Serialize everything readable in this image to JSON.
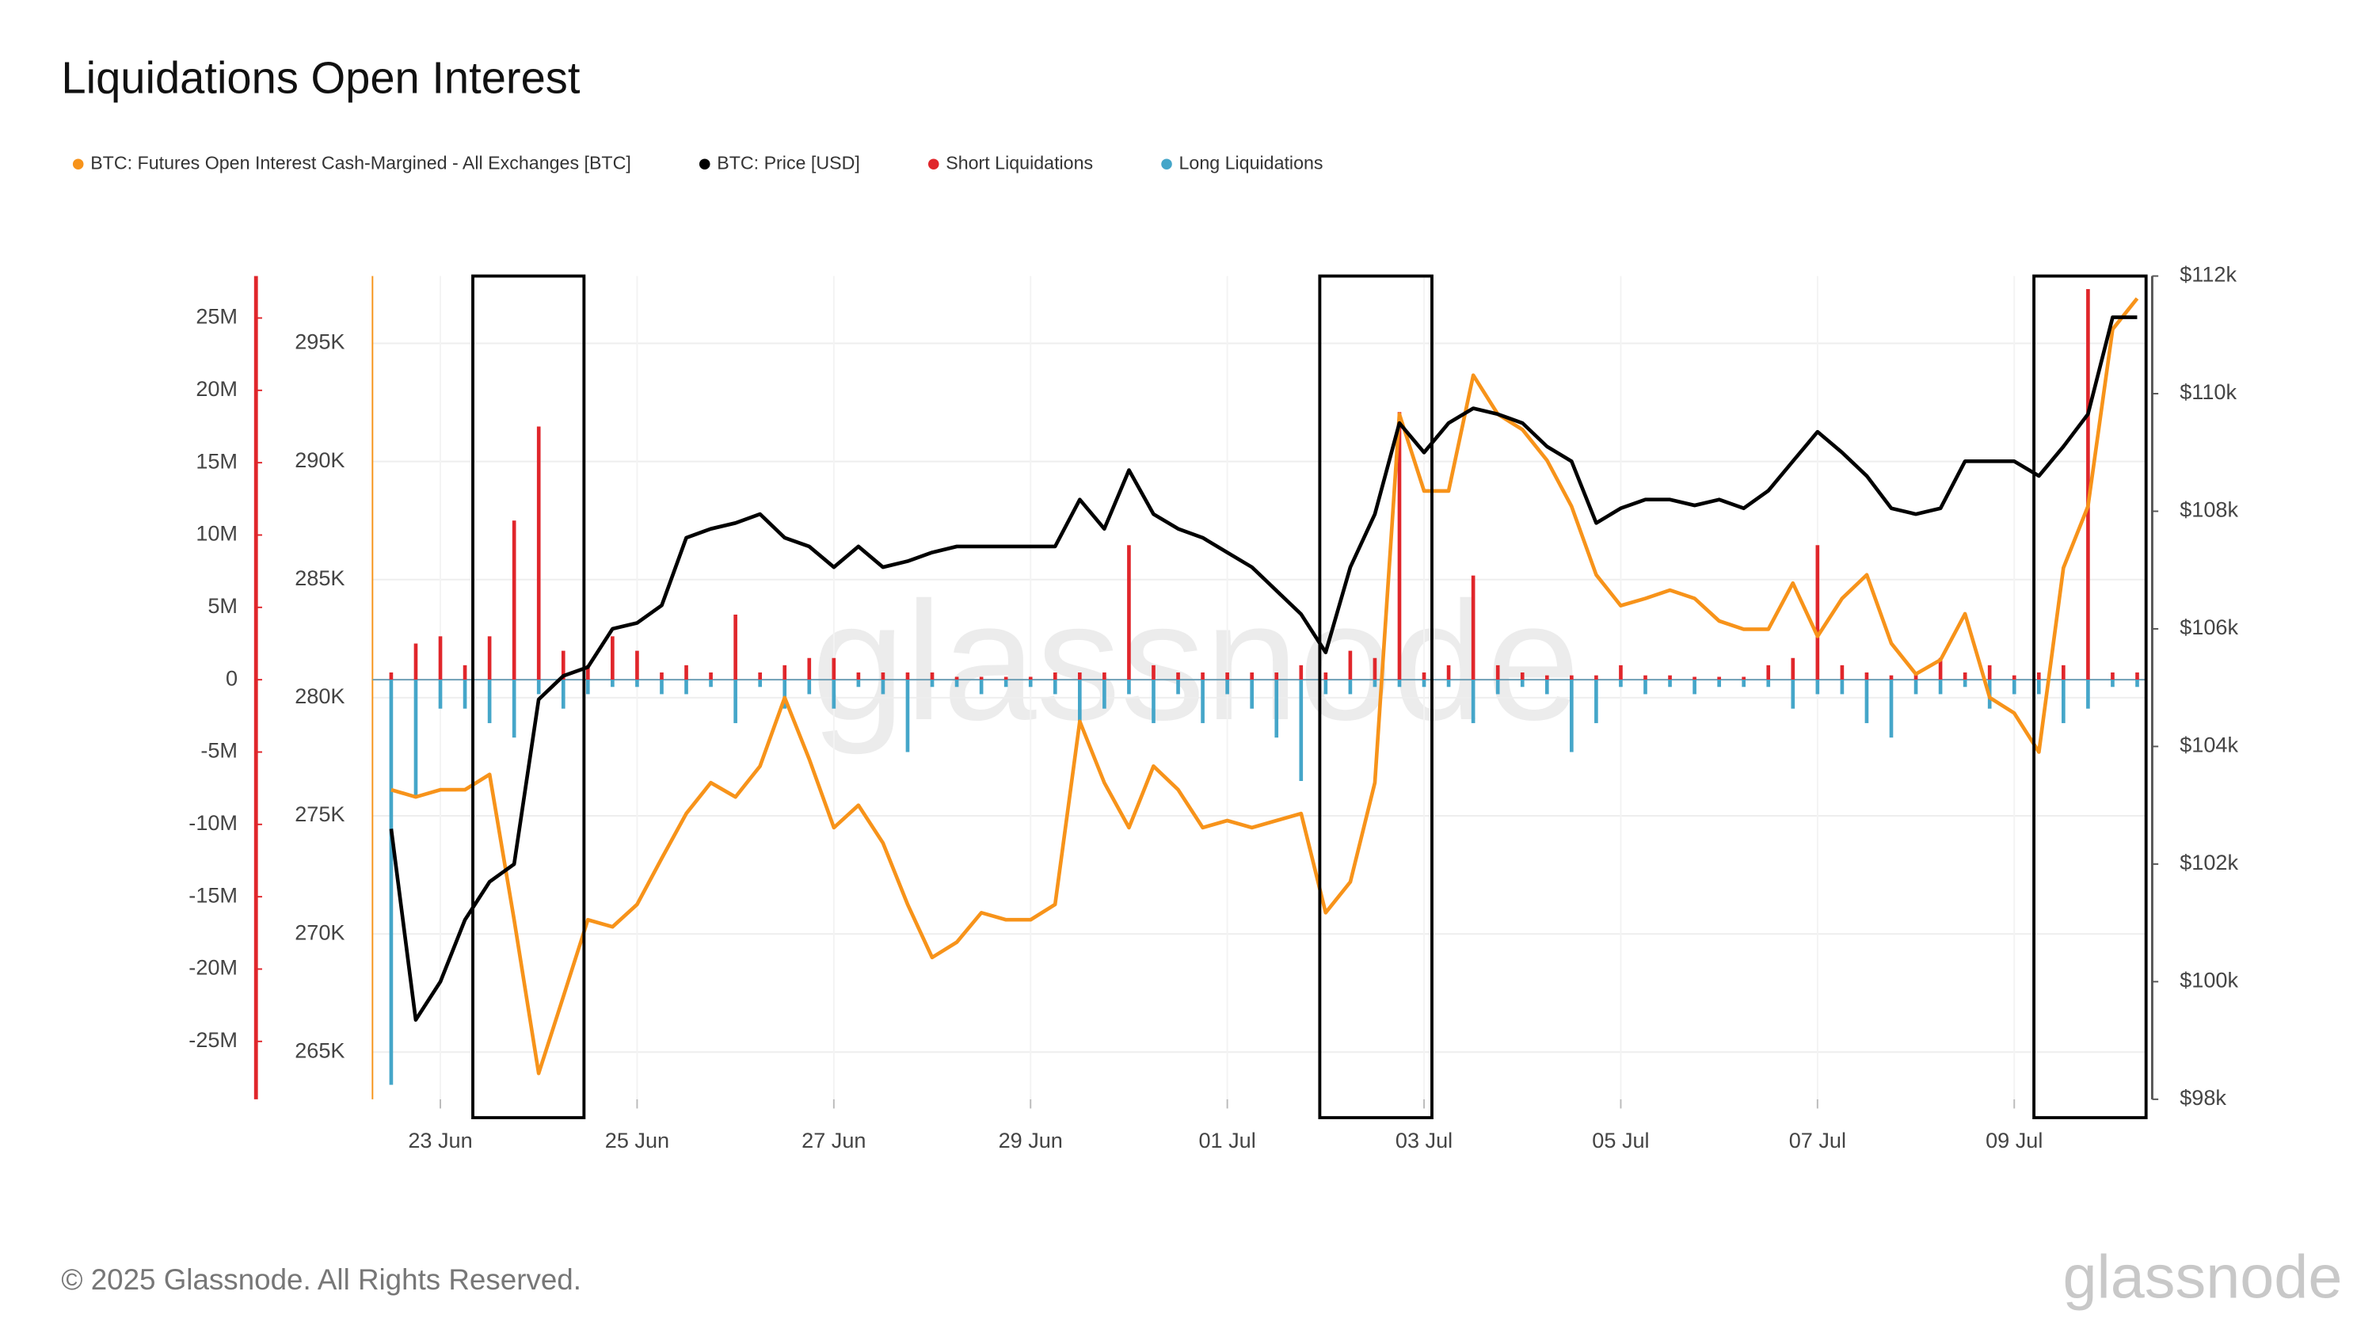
{
  "chart_data": {
    "type": "line",
    "title": "Liquidations Open Interest",
    "footer": "© 2025 Glassnode. All Rights Reserved.",
    "logo": "glassnode",
    "watermark": "glassnode",
    "x": [
      0.5,
      0.75,
      1,
      1.25,
      1.5,
      1.75,
      2,
      2.25,
      2.5,
      2.75,
      3,
      3.25,
      3.5,
      3.75,
      4,
      4.25,
      4.5,
      4.75,
      5,
      5.25,
      5.5,
      5.75,
      6,
      6.25,
      6.5,
      6.75,
      7,
      7.25,
      7.5,
      7.75,
      8,
      8.25,
      8.5,
      8.75,
      9,
      9.25,
      9.5,
      9.75,
      10,
      10.25,
      10.5,
      10.75,
      11,
      11.25,
      11.5,
      11.75,
      12,
      12.25,
      12.5,
      12.75,
      13,
      13.25,
      13.5,
      13.75,
      14,
      14.25,
      14.5,
      14.75,
      15,
      15.25,
      15.5,
      15.75,
      16,
      16.25,
      16.5,
      16.75,
      17,
      17.25,
      17.5,
      17.75,
      18,
      18.25
    ],
    "xlim": [
      0.31,
      18.34
    ],
    "xticks": [
      {
        "value": 1,
        "label": "23 Jun"
      },
      {
        "value": 3,
        "label": "25 Jun"
      },
      {
        "value": 5,
        "label": "27 Jun"
      },
      {
        "value": 7,
        "label": "29 Jun"
      },
      {
        "value": 9,
        "label": "01 Jul"
      },
      {
        "value": 11,
        "label": "03 Jul"
      },
      {
        "value": 13,
        "label": "05 Jul"
      },
      {
        "value": 15,
        "label": "07 Jul"
      },
      {
        "value": 17,
        "label": "09 Jul"
      }
    ],
    "ylim": [
      -29000000,
      27900000
    ],
    "yticks": [
      {
        "value": 25000000,
        "label": "25M"
      },
      {
        "value": 20000000,
        "label": "20M"
      },
      {
        "value": 15000000,
        "label": "15M"
      },
      {
        "value": 10000000,
        "label": "10M"
      },
      {
        "value": 5000000,
        "label": "5M"
      },
      0,
      {
        "value": -5000000,
        "label": "-5M"
      },
      {
        "value": -10000000,
        "label": "-10M"
      },
      {
        "value": -15000000,
        "label": "-15M"
      },
      {
        "value": -20000000,
        "label": "-20M"
      },
      {
        "value": -25000000,
        "label": "-25M"
      }
    ],
    "y3lim": [
      263000,
      297850
    ],
    "y3ticks": [
      {
        "value": 295000,
        "label": "295K"
      },
      {
        "value": 290000,
        "label": "290K"
      },
      {
        "value": 285000,
        "label": "285K"
      },
      {
        "value": 280000,
        "label": "280K"
      },
      {
        "value": 275000,
        "label": "275K"
      },
      {
        "value": 270000,
        "label": "270K"
      },
      {
        "value": 265000,
        "label": "265K"
      }
    ],
    "y2lim": [
      98000,
      112000
    ],
    "y2ticks": [
      {
        "value": 112000,
        "label": "$112k"
      },
      {
        "value": 110000,
        "label": "$110k"
      },
      {
        "value": 108000,
        "label": "$108k"
      },
      {
        "value": 106000,
        "label": "$106k"
      },
      {
        "value": 104000,
        "label": "$104k"
      },
      {
        "value": 102000,
        "label": "$102k"
      },
      {
        "value": 100000,
        "label": "$100k"
      },
      {
        "value": 98000,
        "label": "$98k"
      }
    ],
    "grid": true,
    "legend": "top-left",
    "highlights": [
      [
        1.33,
        2.46
      ],
      [
        9.94,
        11.08
      ],
      [
        17.2,
        18.34
      ]
    ],
    "series": [
      {
        "name": "BTC: Futures Open Interest Cash-Margined - All Exchanges [BTC]",
        "color": "#f7931a",
        "type": "line",
        "axis": "y3",
        "values": [
          276100,
          275800,
          276100,
          276100,
          276750,
          270600,
          264100,
          267350,
          270600,
          270300,
          271250,
          273200,
          275100,
          276400,
          275800,
          277100,
          280000,
          277400,
          274500,
          275450,
          273850,
          271250,
          269000,
          269650,
          270900,
          270600,
          270600,
          271250,
          279000,
          276400,
          274500,
          277100,
          276100,
          274500,
          274800,
          274500,
          274800,
          275100,
          270900,
          272200,
          276400,
          292000,
          288750,
          288750,
          293650,
          292000,
          291350,
          290050,
          288100,
          285200,
          283900,
          284200,
          284550,
          284200,
          283250,
          282900,
          282900,
          284850,
          282600,
          284200,
          285200,
          282300,
          281000,
          281600,
          283550,
          280000,
          279350,
          277700,
          285500,
          288100,
          295600,
          296900
        ]
      },
      {
        "name": "BTC: Price [USD]",
        "color": "#000000",
        "type": "line",
        "axis": "y2",
        "values": [
          102600,
          99350,
          100000,
          101050,
          101700,
          102000,
          104800,
          105200,
          105350,
          106000,
          106100,
          106400,
          107550,
          107700,
          107800,
          107950,
          107550,
          107400,
          107050,
          107400,
          107050,
          107150,
          107300,
          107400,
          107400,
          107400,
          107400,
          107400,
          108200,
          107700,
          108700,
          107950,
          107700,
          107550,
          107300,
          107050,
          106650,
          106250,
          105600,
          107050,
          107950,
          109500,
          109000,
          109500,
          109750,
          109650,
          109500,
          109100,
          108850,
          107800,
          108050,
          108200,
          108200,
          108100,
          108200,
          108050,
          108350,
          108850,
          109350,
          109000,
          108600,
          108050,
          107950,
          108050,
          108850,
          108850,
          108850,
          108600,
          109100,
          109650,
          111300,
          111300
        ]
      },
      {
        "name": "Short Liquidations",
        "color": "#e0262b",
        "type": "bar",
        "axis": "y",
        "values": [
          500000,
          2500000,
          3000000,
          1000000,
          3000000,
          11000000,
          17500000,
          2000000,
          1000000,
          3000000,
          2000000,
          500000,
          1000000,
          500000,
          4500000,
          500000,
          1000000,
          1500000,
          1500000,
          500000,
          500000,
          500000,
          500000,
          200000,
          200000,
          200000,
          200000,
          500000,
          500000,
          500000,
          9300000,
          1000000,
          500000,
          500000,
          500000,
          500000,
          500000,
          1000000,
          500000,
          2000000,
          1500000,
          18500000,
          500000,
          1000000,
          7200000,
          1000000,
          500000,
          300000,
          300000,
          300000,
          1000000,
          300000,
          300000,
          200000,
          200000,
          200000,
          1000000,
          1500000,
          9300000,
          1000000,
          500000,
          300000,
          500000,
          1500000,
          500000,
          1000000,
          300000,
          500000,
          1000000,
          27000000,
          500000,
          500000
        ]
      },
      {
        "name": "Long Liquidations",
        "color": "#45a6c9",
        "type": "bar",
        "axis": "y",
        "values": [
          -28000000,
          -8000000,
          -2000000,
          -2000000,
          -3000000,
          -4000000,
          -1000000,
          -2000000,
          -1000000,
          -500000,
          -500000,
          -1000000,
          -1000000,
          -500000,
          -3000000,
          -500000,
          -2000000,
          -1000000,
          -2000000,
          -500000,
          -1000000,
          -5000000,
          -500000,
          -500000,
          -1000000,
          -500000,
          -500000,
          -1000000,
          -3000000,
          -2000000,
          -1000000,
          -3000000,
          -1000000,
          -3000000,
          -1000000,
          -2000000,
          -4000000,
          -7000000,
          -1000000,
          -1000000,
          -500000,
          -500000,
          -500000,
          -500000,
          -3000000,
          -1000000,
          -500000,
          -1000000,
          -5000000,
          -3000000,
          -500000,
          -1000000,
          -500000,
          -1000000,
          -500000,
          -500000,
          -500000,
          -2000000,
          -1000000,
          -1000000,
          -3000000,
          -4000000,
          -1000000,
          -1000000,
          -500000,
          -2000000,
          -1000000,
          -1000000,
          -3000000,
          -2000000,
          -500000,
          -500000
        ]
      }
    ]
  }
}
